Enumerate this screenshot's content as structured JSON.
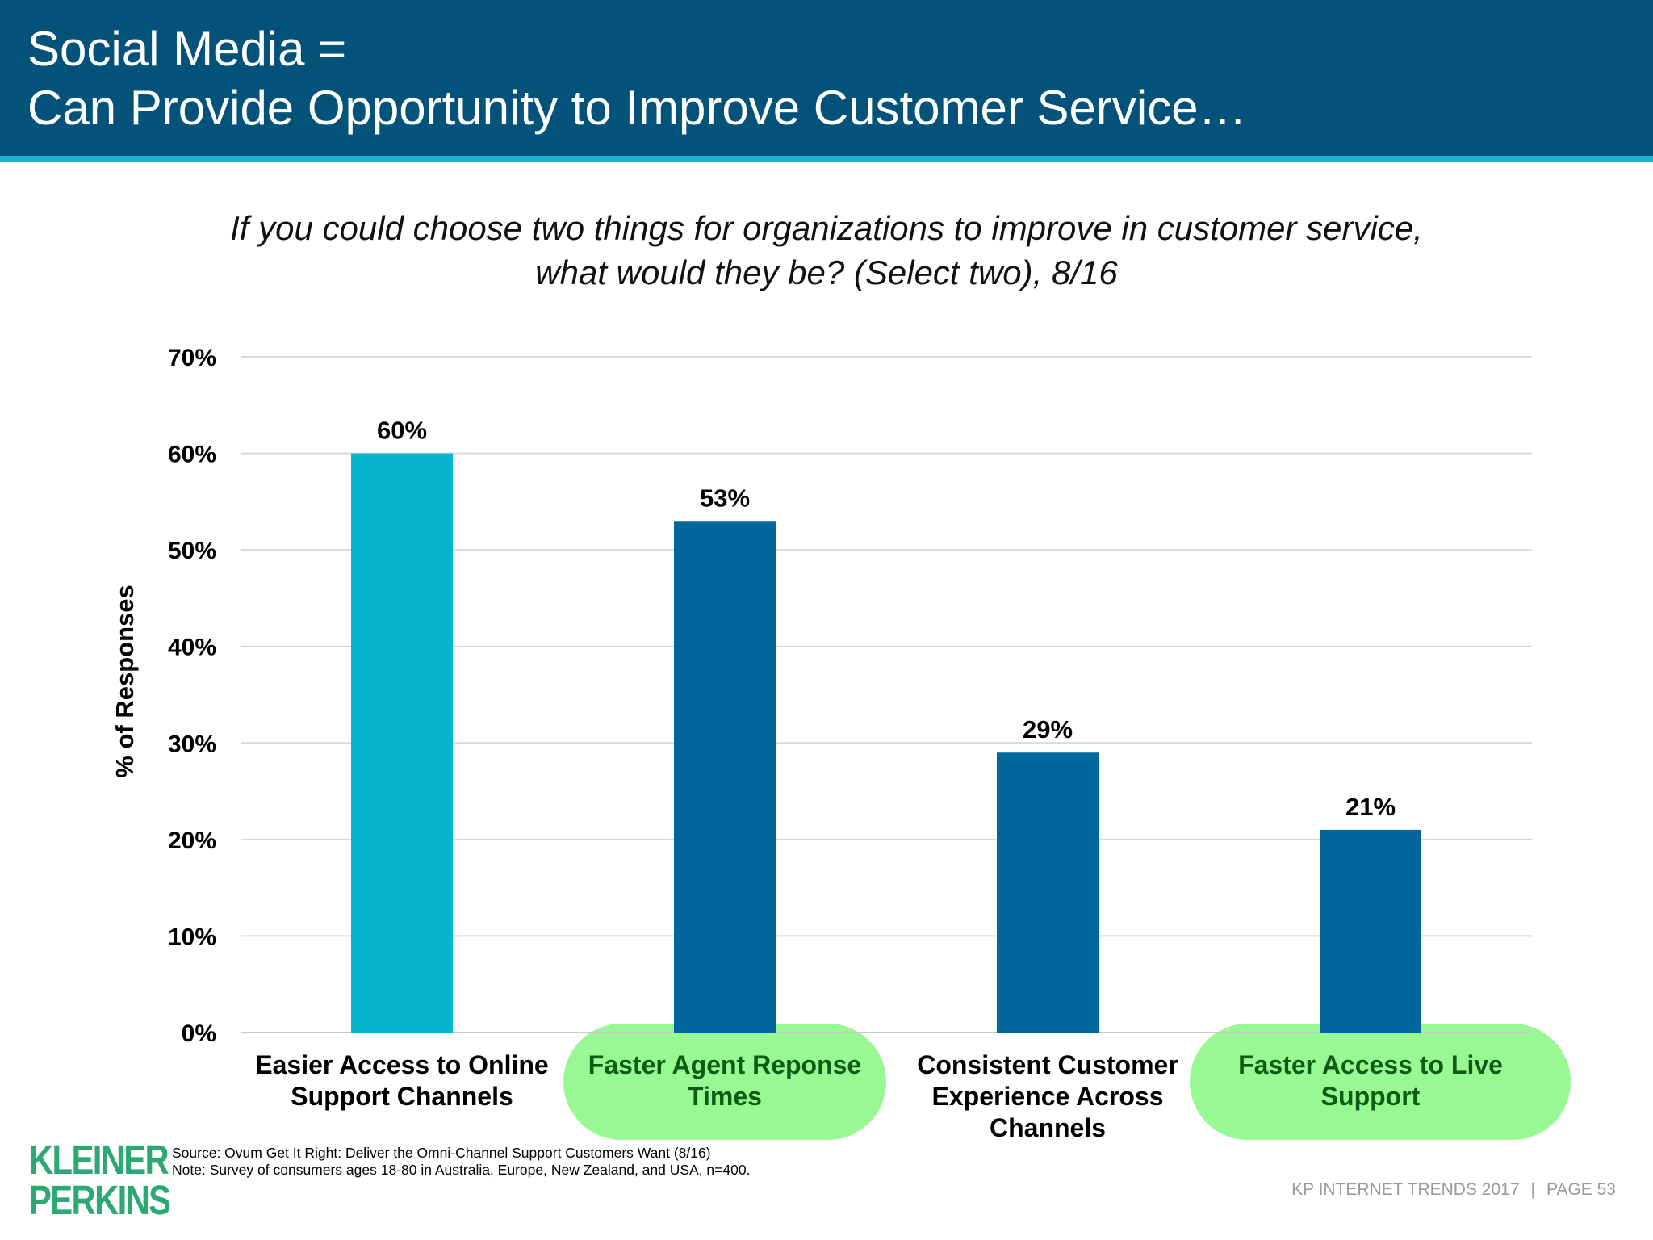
{
  "header": {
    "title_line1": "Social Media =",
    "title_line2": "Can Provide Opportunity to Improve Customer Service…"
  },
  "question": {
    "line1": "If you could choose two things for organizations to improve in customer service,",
    "line2": "what would they be? (Select two), 8/16"
  },
  "chart_data": {
    "type": "bar",
    "title": "If you could choose two things for organizations to improve in customer service, what would they be? (Select two), 8/16",
    "categories": [
      [
        "Easier Access to Online",
        "Support Channels"
      ],
      [
        "Faster Agent Reponse",
        "Times"
      ],
      [
        "Consistent Customer",
        "Experience Across",
        "Channels"
      ],
      [
        "Faster Access to Live",
        "Support"
      ]
    ],
    "values": [
      60,
      53,
      29,
      21
    ],
    "data_labels": [
      "60%",
      "53%",
      "29%",
      "21%"
    ],
    "ylabel": "% of Responses",
    "xlabel": "",
    "ylim": [
      0,
      70
    ],
    "yticks": [
      0,
      10,
      20,
      30,
      40,
      50,
      60,
      70
    ],
    "ytick_labels": [
      "0%",
      "10%",
      "20%",
      "30%",
      "40%",
      "50%",
      "60%",
      "70%"
    ],
    "grid": true,
    "bar_colors": [
      "#05b5cf",
      "#02679d",
      "#02679d",
      "#02679d"
    ],
    "highlighted_categories": [
      1,
      3
    ],
    "highlight_color": "#98f893",
    "highlight_text_color": "#0d5c12"
  },
  "source": {
    "line1": "Source: Ovum Get It Right: Deliver the Omni-Channel Support Customers Want (8/16)",
    "line2": "Note: Survey of consumers ages 18-80 in Australia, Europe, New Zealand, and USA, n=400."
  },
  "logo": {
    "line1": "KLEINER",
    "line2": "PERKINS"
  },
  "footer": {
    "left": "KP INTERNET TRENDS 2017",
    "separator": "|",
    "right": "PAGE 53"
  },
  "colors": {
    "header_bg": "#02527a",
    "header_rule": "#1eb4d0",
    "logo": "#2ca872"
  }
}
